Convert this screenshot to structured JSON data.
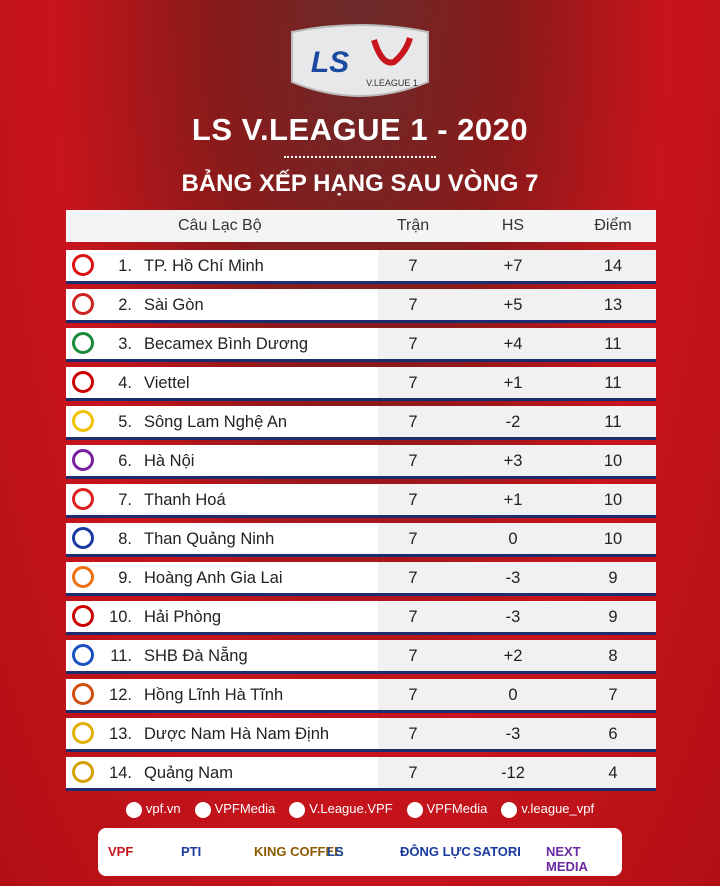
{
  "logo": {
    "brand": "LS",
    "league": "V.LEAGUE 1"
  },
  "header": {
    "title": "LS V.LEAGUE 1 - 2020",
    "subtitle": "BẢNG XẾP HẠNG SAU VÒNG 7"
  },
  "table": {
    "columns": [
      "Câu Lạc Bộ",
      "Trận",
      "HS",
      "Điểm"
    ],
    "rows": [
      [
        "1.",
        "TP. Hồ Chí Minh",
        "7",
        "+7",
        "14"
      ],
      [
        "2.",
        "Sài Gòn",
        "7",
        "+5",
        "13"
      ],
      [
        "3.",
        "Becamex Bình Dương",
        "7",
        "+4",
        "11"
      ],
      [
        "4.",
        "Viettel",
        "7",
        "+1",
        "11"
      ],
      [
        "5.",
        "Sông Lam Nghệ An",
        "7",
        "-2",
        "11"
      ],
      [
        "6.",
        "Hà Nội",
        "7",
        "+3",
        "10"
      ],
      [
        "7.",
        "Thanh Hoá",
        "7",
        "+1",
        "10"
      ],
      [
        "8.",
        "Than Quảng Ninh",
        "7",
        "0",
        "10"
      ],
      [
        "9.",
        "Hoàng Anh Gia Lai",
        "7",
        "-3",
        "9"
      ],
      [
        "10.",
        "Hải Phòng",
        "7",
        "-3",
        "9"
      ],
      [
        "11.",
        "SHB Đà Nẵng",
        "7",
        "+2",
        "8"
      ],
      [
        "12.",
        "Hồng Lĩnh Hà Tĩnh",
        "7",
        "0",
        "7"
      ],
      [
        "13.",
        "Dược Nam Hà Nam Định",
        "7",
        "-3",
        "6"
      ],
      [
        "14.",
        "Quảng Nam",
        "7",
        "-12",
        "4"
      ]
    ]
  },
  "footer": {
    "social": [
      "vpf.vn",
      "VPFMedia",
      "V.League.VPF",
      "VPFMedia",
      "v.league_vpf"
    ],
    "sponsors": [
      "VPF",
      "PTI",
      "KING COFFEE",
      "LS",
      "ĐÔNG LỰC",
      "SATORI",
      "NEXT MEDIA"
    ]
  }
}
